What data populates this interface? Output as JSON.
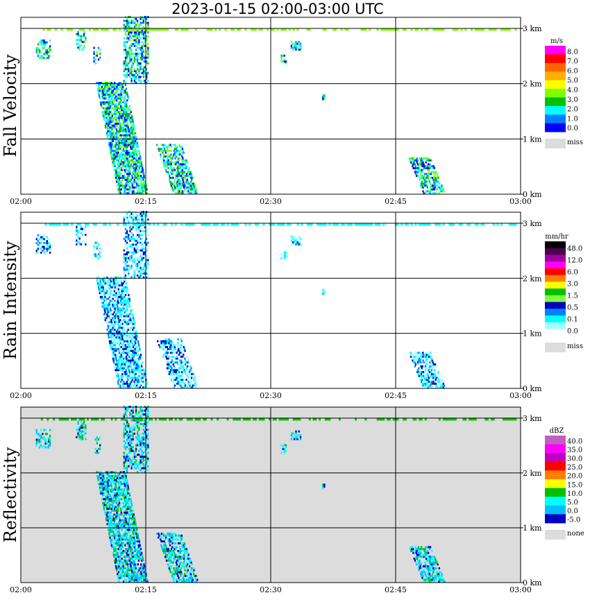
{
  "title": "2023-01-15  02:00-03:00 UTC",
  "x_ticks": [
    "02:00",
    "02:15",
    "02:30",
    "02:45",
    "03:00"
  ],
  "y_ticks": [
    "0 km",
    "1 km",
    "2 km",
    "3 km"
  ],
  "colors": {
    "grid": "#000000",
    "missing_background": "#dcdcdc",
    "plot_background": "#ffffff"
  },
  "chart_data": [
    {
      "type": "heatmap",
      "panel": "fall_velocity",
      "title": "Fall Velocity",
      "x_range": [
        "02:00",
        "03:00"
      ],
      "y_range_km": [
        0,
        3.2
      ],
      "grid": true,
      "legend": {
        "unit": "m/s",
        "labels": [
          "8.0",
          "7.0",
          "6.0",
          "5.0",
          "4.0",
          "3.0",
          "2.0",
          "1.0",
          "0.0"
        ],
        "colors": [
          "#ff00ff",
          "#ff0000",
          "#ff6600",
          "#ffb000",
          "#ffff00",
          "#80ff00",
          "#00c000",
          "#00ffff",
          "#0080ff",
          "#0000ff"
        ],
        "missing_label": "miss",
        "missing_color": "#dcdcdc"
      }
    },
    {
      "type": "heatmap",
      "panel": "rain_intensity",
      "title": "Rain Intensity",
      "x_range": [
        "02:00",
        "03:00"
      ],
      "y_range_km": [
        0,
        3.2
      ],
      "grid": true,
      "legend": {
        "unit": "mm/hr",
        "labels": [
          "48.0",
          "12.0",
          "6.0",
          "3.0",
          "1.5",
          "0.5",
          "0.1",
          "0.0"
        ],
        "colors": [
          "#000000",
          "#500050",
          "#a000a0",
          "#ff00ff",
          "#ff0000",
          "#ff8000",
          "#ffff00",
          "#00c000",
          "#80ff40",
          "#0000c0",
          "#0080ff",
          "#00ffff",
          "#a0ffff",
          "#ffffff"
        ],
        "missing_label": "miss",
        "missing_color": "#dcdcdc"
      }
    },
    {
      "type": "heatmap",
      "panel": "reflectivity",
      "title": "Reflectivity",
      "x_range": [
        "02:00",
        "03:00"
      ],
      "y_range_km": [
        0,
        3.2
      ],
      "grid": true,
      "legend": {
        "unit": "dBZ",
        "labels": [
          "40.0",
          "35.0",
          "30.0",
          "25.0",
          "20.0",
          "15.0",
          "10.0",
          "5.0",
          "0.0",
          "-5.0"
        ],
        "colors": [
          "#c060c0",
          "#ff00ff",
          "#c000c0",
          "#ff0000",
          "#ff8000",
          "#ffff00",
          "#00c000",
          "#00ffff",
          "#00c0ff",
          "#0000c0"
        ],
        "missing_label": "none",
        "missing_color": "#dcdcdc"
      }
    }
  ]
}
